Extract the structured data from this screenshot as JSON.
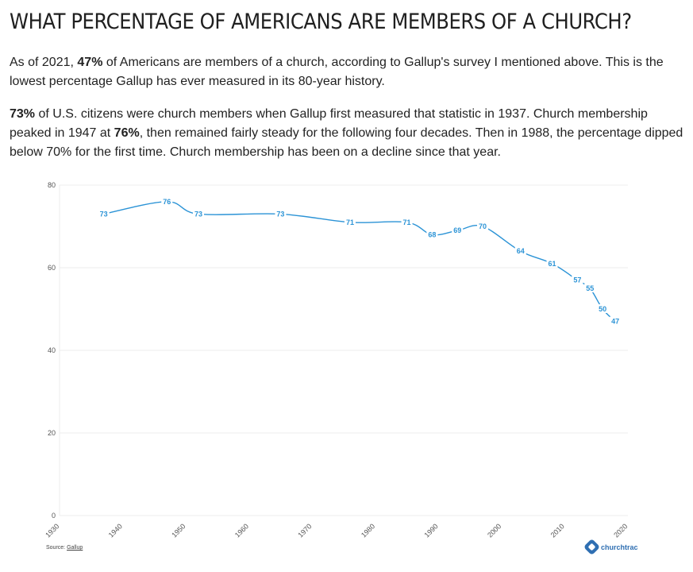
{
  "page": {
    "title": "What Percentage of Americans Are Members of a Church?",
    "p1": [
      {
        "text": "As of 2021, ",
        "bold": false
      },
      {
        "text": "47%",
        "bold": true
      },
      {
        "text": " of Americans are members of a church, according to Gallup's survey I mentioned above. This is the lowest percentage Gallup has ever measured in its 80-year history.",
        "bold": false
      }
    ],
    "p2": [
      {
        "text": "73%",
        "bold": true
      },
      {
        "text": " of U.S. citizens were church members when Gallup first measured that statistic in 1937. Church membership peaked in 1947 at ",
        "bold": false
      },
      {
        "text": "76%",
        "bold": true
      },
      {
        "text": ", then remained fairly steady for the following four decades. Then in 1988, the percentage dipped below 70% for the first time. Church membership has been on a decline since that year.",
        "bold": false
      }
    ]
  },
  "footer": {
    "source_label": "Source: ",
    "source_name": "Gallup",
    "brand": "churchtrac"
  },
  "colors": {
    "line": "#2b93d6",
    "grid": "#ececec",
    "brand": "#2f6fb2"
  },
  "chart_data": {
    "type": "line",
    "title": "",
    "xlabel": "",
    "ylabel": "",
    "xlim": [
      1930,
      2020
    ],
    "ylim": [
      0,
      80
    ],
    "x_ticks": [
      1930,
      1940,
      1950,
      1960,
      1970,
      1980,
      1990,
      2000,
      2010,
      2020
    ],
    "y_ticks": [
      0,
      20,
      40,
      60,
      80
    ],
    "grid": true,
    "series": [
      {
        "x": [
          1937,
          1947,
          1952,
          1965,
          1976,
          1985,
          1989,
          1993,
          1997,
          2003,
          2008,
          2012,
          2014,
          2016,
          2018
        ],
        "values": [
          73,
          76,
          73,
          73,
          71,
          71,
          68,
          69,
          70,
          64,
          61,
          57,
          55,
          50,
          47
        ]
      }
    ]
  }
}
